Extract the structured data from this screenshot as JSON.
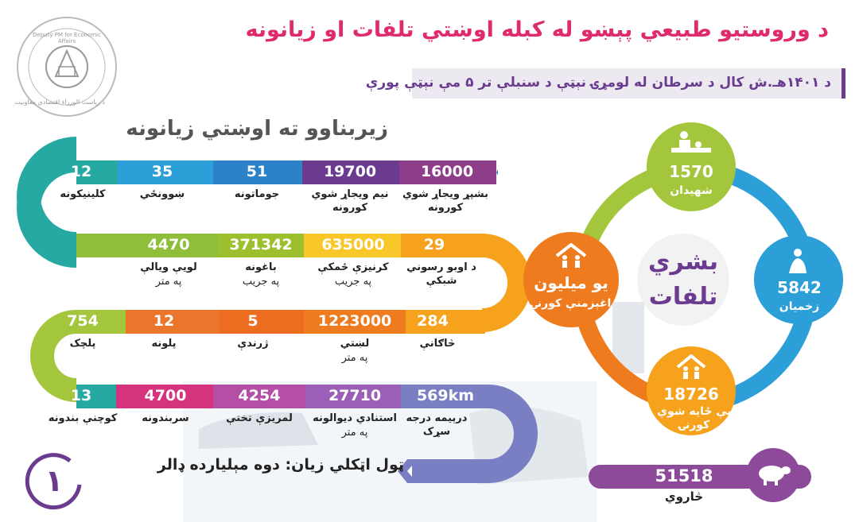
{
  "title": "د وروستيو طبيعي پېښو له کبله اوښتي تلفات او زيانونه",
  "subtitle": "د ۱۴۰۱هـ.ش کال د سرطان له لومړۍ نېټې د سنبلې تر ۵ مې نېټې پورې",
  "logo": {
    "text_top": "Deputy PM for Economic Affairs",
    "text_bottom": "د ریاست الوزراء اقتصادي معاونیت"
  },
  "infrastructure": {
    "title": "زيربناوو ته اوښتي زيانونه",
    "rows": [
      {
        "color": "#27a9a3",
        "items": [
          {
            "value": "16000",
            "label": "بشپړ ويجاړ شوي کورونه",
            "color": "#8e3d8b"
          },
          {
            "value": "19700",
            "label": "نيم ويجاړ شوي کورونه",
            "color": "#6a3b8f"
          },
          {
            "value": "51",
            "label": "جوماتونه",
            "color": "#2c82c9"
          },
          {
            "value": "35",
            "label": "ښوونځي",
            "color": "#2c9fd8"
          },
          {
            "value": "12",
            "label": "کلينيکونه",
            "color": "#27a9a3"
          }
        ]
      },
      {
        "color": "#f6a21d",
        "items": [
          {
            "value": "29",
            "label": "د اوبو رسوني شبکې",
            "color": "#f6a21d"
          },
          {
            "value": "635000",
            "label": "کرنيزې ځمکې",
            "unit": "په جريب",
            "color": "#f9c72a"
          },
          {
            "value": "371342",
            "label": "باغونه",
            "unit": "په جريب",
            "color": "#9cbf2e"
          },
          {
            "value": "4470",
            "label": "لويې ويالې",
            "unit": "په متر",
            "color": "#8fbe3a"
          }
        ]
      },
      {
        "color": "#ee7c1e",
        "items": [
          {
            "value": "284",
            "label": "څاګانې",
            "color": "#f6a21d"
          },
          {
            "value": "1223000",
            "label": "لښتي",
            "unit": "په متر",
            "color": "#ee7c1e"
          },
          {
            "value": "5",
            "label": "ژرندې",
            "color": "#ec6d1f"
          },
          {
            "value": "12",
            "label": "پلونه",
            "color": "#e9762a"
          },
          {
            "value": "754",
            "label": "پلچک",
            "color": "#a4c63c"
          }
        ]
      },
      {
        "color": "#d6337f",
        "items": [
          {
            "value": "569km",
            "label": "درېيمه درجه سړک",
            "color": "#7a7fc4"
          },
          {
            "value": "27710",
            "label": "استنادي ديوالونه",
            "unit": "په متر",
            "color": "#9b5fb8"
          },
          {
            "value": "4254",
            "label": "لمريزې تختې",
            "color": "#b44fa5"
          },
          {
            "value": "4700",
            "label": "سربندونه",
            "color": "#d6337f"
          },
          {
            "value": "13",
            "label": "کوچنې بندونه",
            "color": "#27a9a3"
          }
        ]
      }
    ],
    "total": "ټول اټکلي زيان: دوه مېلیارده ډالر"
  },
  "human": {
    "center": "بشري تلفات",
    "items": [
      {
        "value": "1570",
        "label": "شهيدان",
        "icon": "massage-person-icon",
        "color": "#a4c63c"
      },
      {
        "value": "5842",
        "label": "زخميان",
        "icon": "injured-person-icon",
        "color": "#2c9fd8"
      },
      {
        "value": "18726",
        "label": "بې ځايه شوي کورنۍ",
        "icon": "family-house-icon",
        "color": "#f6a21d"
      },
      {
        "value": "يو ميليون",
        "label": "اغېزمنې کورنۍ",
        "icon": "family-house-icon",
        "color": "#ee7c1e"
      }
    ]
  },
  "livestock": {
    "value": "51518",
    "label": "څاروي",
    "icon": "sheep-icon"
  },
  "page_number": "۱",
  "colors": {
    "pink": "#e02a6e",
    "purple": "#6a3b8f",
    "teal": "#27a9a3",
    "orange": "#f6a21d",
    "green": "#a4c63c",
    "blue": "#2c9fd8"
  }
}
